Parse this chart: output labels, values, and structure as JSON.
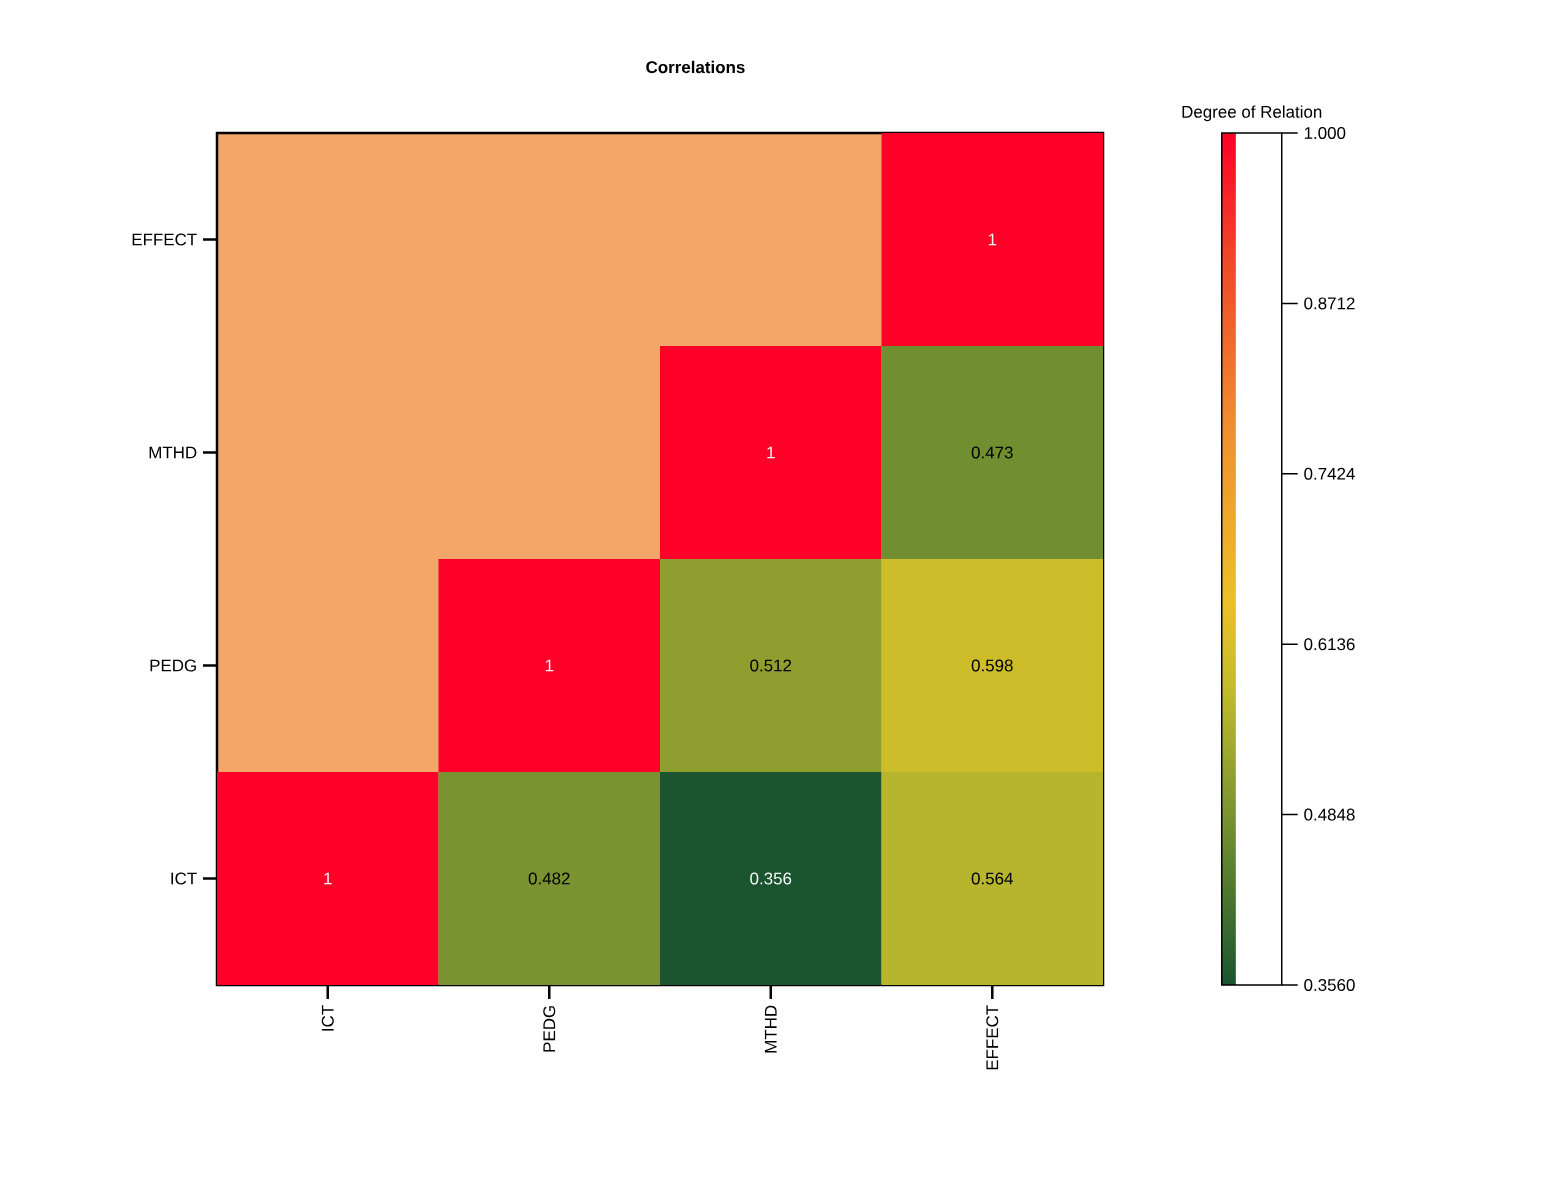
{
  "chart_data": {
    "type": "heatmap",
    "title": "Correlations",
    "clabel": "Degree of Relation",
    "categories": [
      "ICT",
      "PEDG",
      "MTHD",
      "EFFECT"
    ],
    "y_categories": [
      "EFFECT",
      "MTHD",
      "PEDG",
      "ICT"
    ],
    "cells": [
      [
        null,
        null,
        null,
        1
      ],
      [
        null,
        null,
        1,
        0.473
      ],
      [
        null,
        1,
        0.512,
        0.598
      ],
      [
        1,
        0.482,
        0.356,
        0.564
      ]
    ],
    "data_labels": true,
    "clim": [
      0.356,
      1.0
    ],
    "cticks": [
      {
        "value": 0.356,
        "label": "0.3560"
      },
      0.4848,
      0.6136,
      0.7424,
      0.8712,
      {
        "value": 1.0,
        "label": "1.000"
      }
    ]
  }
}
